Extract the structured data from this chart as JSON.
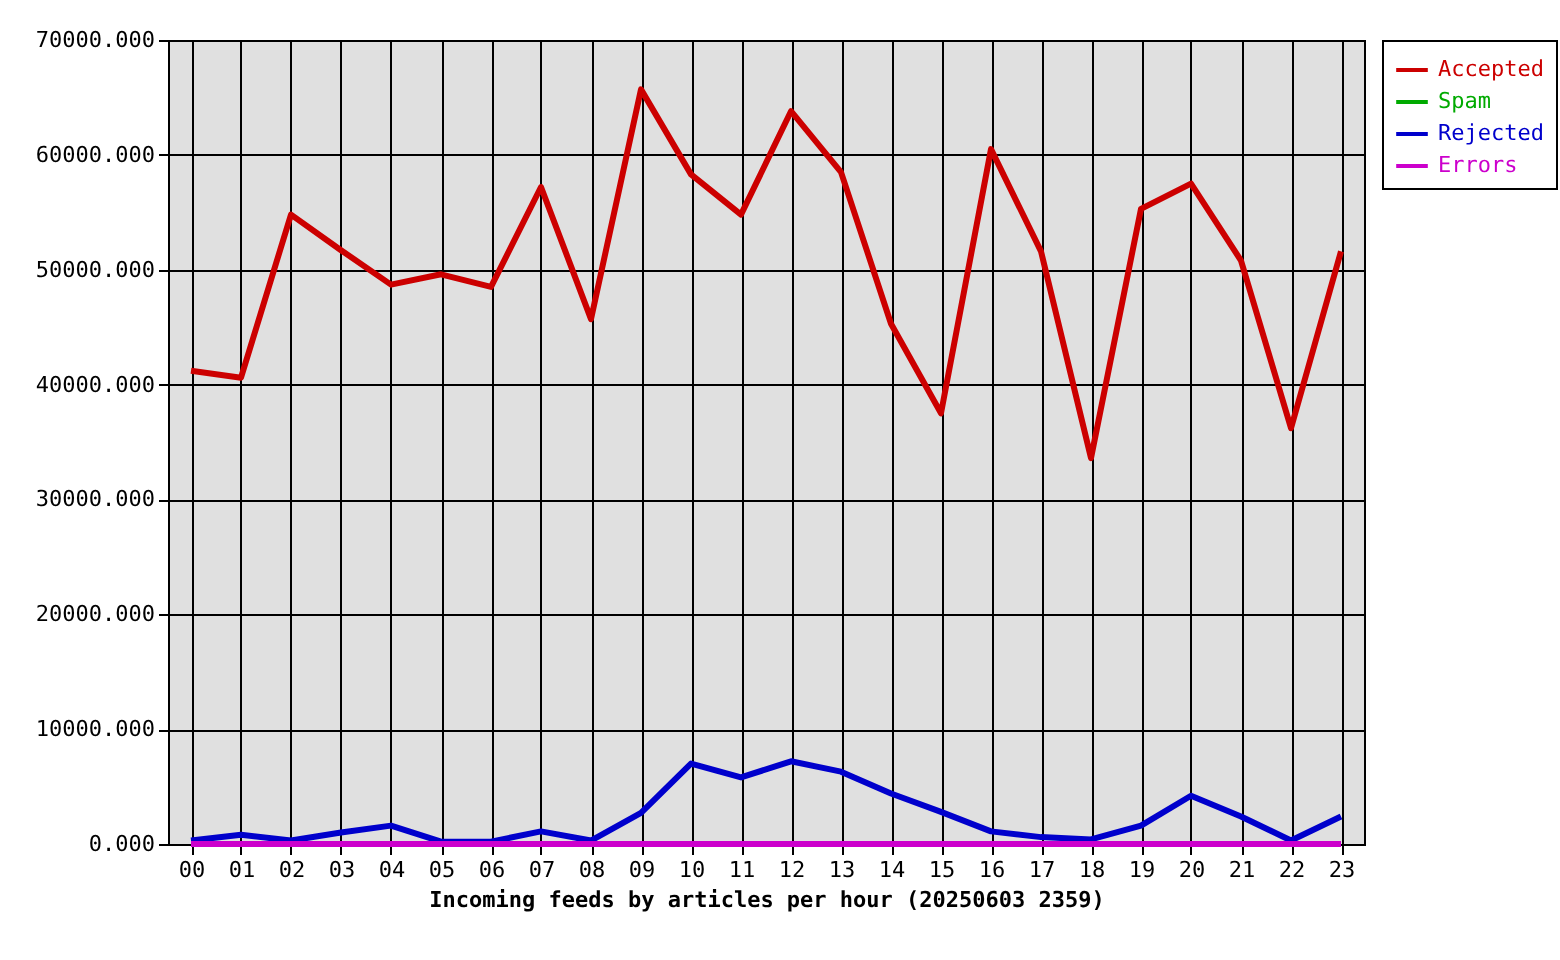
{
  "chart_data": {
    "type": "line",
    "xlabel": "Incoming feeds by articles per hour (20250603 2359)",
    "categories": [
      "00",
      "01",
      "02",
      "03",
      "04",
      "05",
      "06",
      "07",
      "08",
      "09",
      "10",
      "11",
      "12",
      "13",
      "14",
      "15",
      "16",
      "17",
      "18",
      "19",
      "20",
      "21",
      "22",
      "23"
    ],
    "series": [
      {
        "name": "Accepted",
        "color": "#cc0000",
        "values": [
          41200,
          40600,
          54800,
          51700,
          48700,
          49600,
          48500,
          57200,
          45700,
          65700,
          58300,
          54800,
          63800,
          58500,
          45300,
          37500,
          60500,
          51600,
          33600,
          55300,
          57500,
          50800,
          36200,
          51600
        ]
      },
      {
        "name": "Spam",
        "color": "#00aa00",
        "values": [
          null,
          null,
          null,
          null,
          null,
          null,
          null,
          null,
          null,
          null,
          null,
          null,
          null,
          null,
          null,
          null,
          null,
          null,
          null,
          null,
          null,
          null,
          null,
          null
        ]
      },
      {
        "name": "Rejected",
        "color": "#0000cc",
        "values": [
          300,
          800,
          300,
          1000,
          1600,
          200,
          200,
          1100,
          300,
          2700,
          7000,
          5800,
          7200,
          6300,
          4400,
          2800,
          1100,
          600,
          400,
          1600,
          4200,
          2400,
          300,
          2400
        ]
      },
      {
        "name": "Errors",
        "color": "#cc00cc",
        "values": [
          0,
          0,
          0,
          0,
          0,
          0,
          0,
          0,
          0,
          0,
          0,
          0,
          0,
          0,
          0,
          0,
          0,
          0,
          0,
          0,
          0,
          0,
          0,
          0
        ]
      }
    ],
    "ylim": [
      0,
      70000
    ],
    "yticks": [
      {
        "value": 0,
        "label": "0.000"
      },
      {
        "value": 10000,
        "label": "10000.000"
      },
      {
        "value": 20000,
        "label": "20000.000"
      },
      {
        "value": 30000,
        "label": "30000.000"
      },
      {
        "value": 40000,
        "label": "40000.000"
      },
      {
        "value": 50000,
        "label": "50000.000"
      },
      {
        "value": 60000,
        "label": "60000.000"
      },
      {
        "value": 70000,
        "label": "70000.000"
      }
    ],
    "grid": true,
    "legend": "top right",
    "marker": "none",
    "line_style": "solid"
  }
}
